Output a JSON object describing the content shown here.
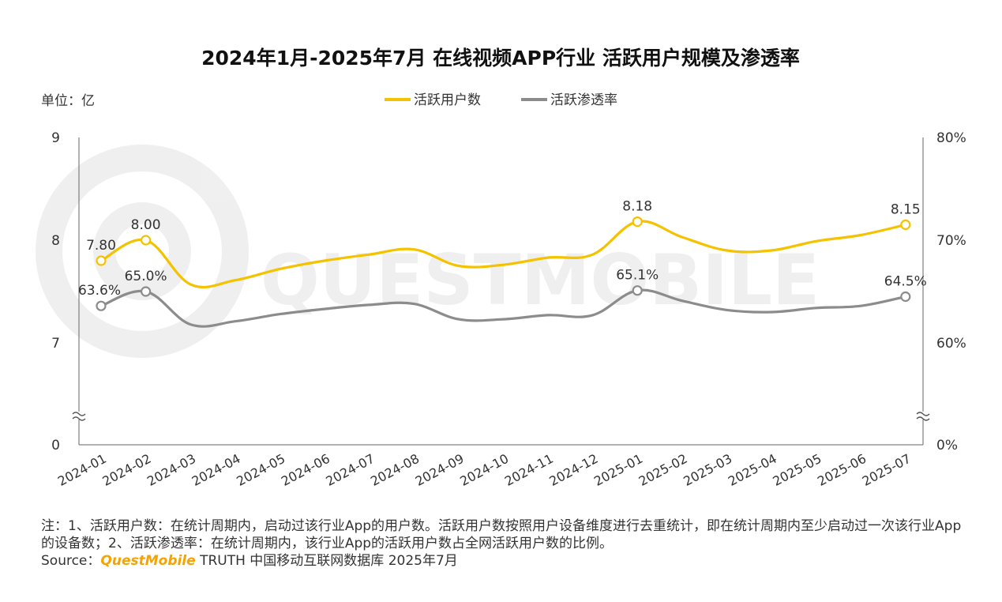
{
  "chart_data": {
    "type": "line",
    "title": "2024年1月-2025年7月 在线视频APP行业 活跃用户规模及渗透率",
    "unit_label": "单位：亿",
    "categories": [
      "2024-01",
      "2024-02",
      "2024-03",
      "2024-04",
      "2024-05",
      "2024-06",
      "2024-07",
      "2024-08",
      "2024-09",
      "2024-10",
      "2024-11",
      "2024-12",
      "2025-01",
      "2025-02",
      "2025-03",
      "2025-04",
      "2025-05",
      "2025-06",
      "2025-07"
    ],
    "left_axis": {
      "ticks": [
        "9",
        "8",
        "7",
        "0"
      ],
      "range": [
        7,
        9
      ],
      "break": true
    },
    "right_axis": {
      "ticks": [
        "80%",
        "70%",
        "60%",
        "0%"
      ],
      "range": [
        60,
        80
      ],
      "break": true
    },
    "legend_position": "top-center",
    "series": [
      {
        "name": "活跃用户数",
        "axis": "left",
        "color": "#F5C200",
        "values": [
          7.8,
          8.0,
          7.57,
          7.61,
          7.72,
          7.8,
          7.86,
          7.91,
          7.75,
          7.76,
          7.83,
          7.86,
          8.18,
          8.03,
          7.9,
          7.9,
          7.99,
          8.05,
          8.15
        ],
        "labels": [
          "7.80",
          "8.00",
          "",
          "",
          "",
          "",
          "",
          "",
          "",
          "",
          "",
          "",
          "8.18",
          "",
          "",
          "",
          "",
          "",
          "8.15"
        ]
      },
      {
        "name": "活跃渗透率",
        "axis": "right",
        "color": "#8C8C8C",
        "values": [
          63.6,
          65.0,
          61.8,
          62.1,
          62.8,
          63.3,
          63.7,
          63.8,
          62.3,
          62.3,
          62.7,
          62.7,
          65.1,
          64.1,
          63.2,
          63.0,
          63.4,
          63.6,
          64.5
        ],
        "labels": [
          "63.6%",
          "65.0%",
          "",
          "",
          "",
          "",
          "",
          "",
          "",
          "",
          "",
          "",
          "65.1%",
          "",
          "",
          "",
          "",
          "",
          "64.5%"
        ]
      }
    ]
  },
  "watermark": "QUESTMOBILE",
  "footer": {
    "note": "注：1、活跃用户数：在统计周期内，启动过该行业App的用户数。活跃用户数按照用户设备维度进行去重统计，即在统计周期内至少启动过一次该行业App的设备数；2、活跃渗透率：在统计周期内，该行业App的活跃用户数占全网活跃用户数的比例。",
    "source_prefix": "Source：",
    "source_brand": "QuestMobile",
    "source_rest": " TRUTH 中国移动互联网数据库 2025年7月"
  }
}
